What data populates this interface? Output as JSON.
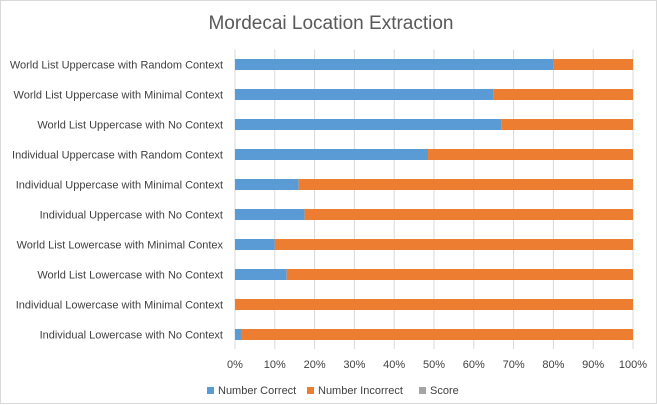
{
  "chart_data": {
    "type": "bar",
    "orientation": "horizontal",
    "stacked": "percent",
    "title": "Mordecai Location Extraction",
    "categories": [
      "World List Uppercase with Random Context",
      "World List Uppercase with Minimal Context",
      "World List Uppercase with No Context",
      "Individual Uppercase with Random Context",
      "Individual Uppercase with Minimal Context",
      "Individual Uppercase with No Context",
      "World List Lowercase with Minimal Contex",
      "World List Lowercase with No Context",
      "Individual Lowercase with Minimal Context",
      "Individual Lowercase with No Context"
    ],
    "series": [
      {
        "name": "Number Correct",
        "color": "#5b9bd5",
        "values": [
          80,
          65,
          67,
          48.5,
          16,
          17.5,
          10,
          13,
          0,
          1.5
        ]
      },
      {
        "name": "Number Incorrect",
        "color": "#ed7d31",
        "values": [
          20,
          35,
          33,
          51.5,
          84,
          82.5,
          90,
          87,
          100,
          98.5
        ]
      },
      {
        "name": "Score",
        "color": "#a5a5a5",
        "values": [
          0,
          0,
          0,
          0,
          0,
          0,
          0,
          0,
          0,
          0
        ]
      }
    ],
    "xlim": [
      0,
      100
    ],
    "xticks": [
      "0%",
      "10%",
      "20%",
      "30%",
      "40%",
      "50%",
      "60%",
      "70%",
      "80%",
      "90%",
      "100%"
    ],
    "grid": "vertical",
    "legend": "bottom"
  }
}
